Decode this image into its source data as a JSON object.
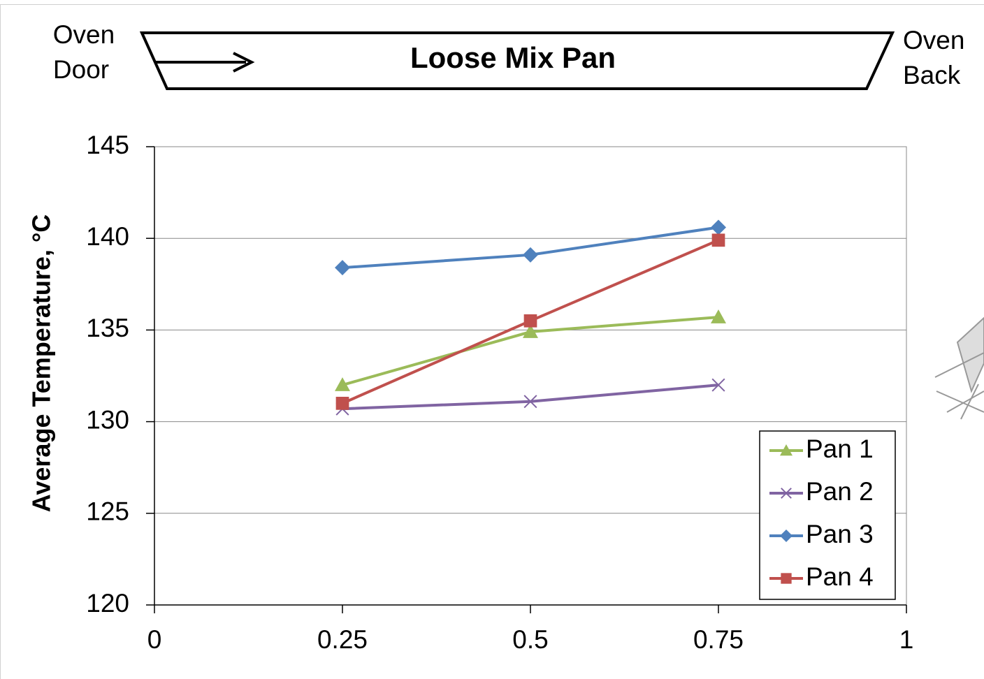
{
  "chart_data": {
    "type": "line",
    "title": "Loose Mix Pan",
    "left_label": [
      "Oven",
      "Door"
    ],
    "right_label": [
      "Oven",
      "Back"
    ],
    "y_label": "Average Temperature, °C",
    "x": [
      0.25,
      0.5,
      0.75
    ],
    "series": [
      {
        "name": "Pan 1",
        "color": "#9bbb59",
        "marker": "triangle",
        "values": [
          132.0,
          134.9,
          135.7
        ]
      },
      {
        "name": "Pan 2",
        "color": "#8064a2",
        "marker": "x",
        "values": [
          130.7,
          131.1,
          132.0
        ]
      },
      {
        "name": "Pan 3",
        "color": "#4f81bd",
        "marker": "diamond",
        "values": [
          138.4,
          139.1,
          140.6
        ]
      },
      {
        "name": "Pan 4",
        "color": "#c0504d",
        "marker": "square",
        "values": [
          131.0,
          135.5,
          139.9
        ]
      }
    ],
    "xlim": [
      0,
      1
    ],
    "xticks": [
      0,
      0.25,
      0.5,
      0.75,
      1
    ],
    "ylim": [
      120,
      145
    ],
    "yticks": [
      120,
      125,
      130,
      135,
      140,
      145
    ],
    "grid": true,
    "legend": "lower right"
  }
}
